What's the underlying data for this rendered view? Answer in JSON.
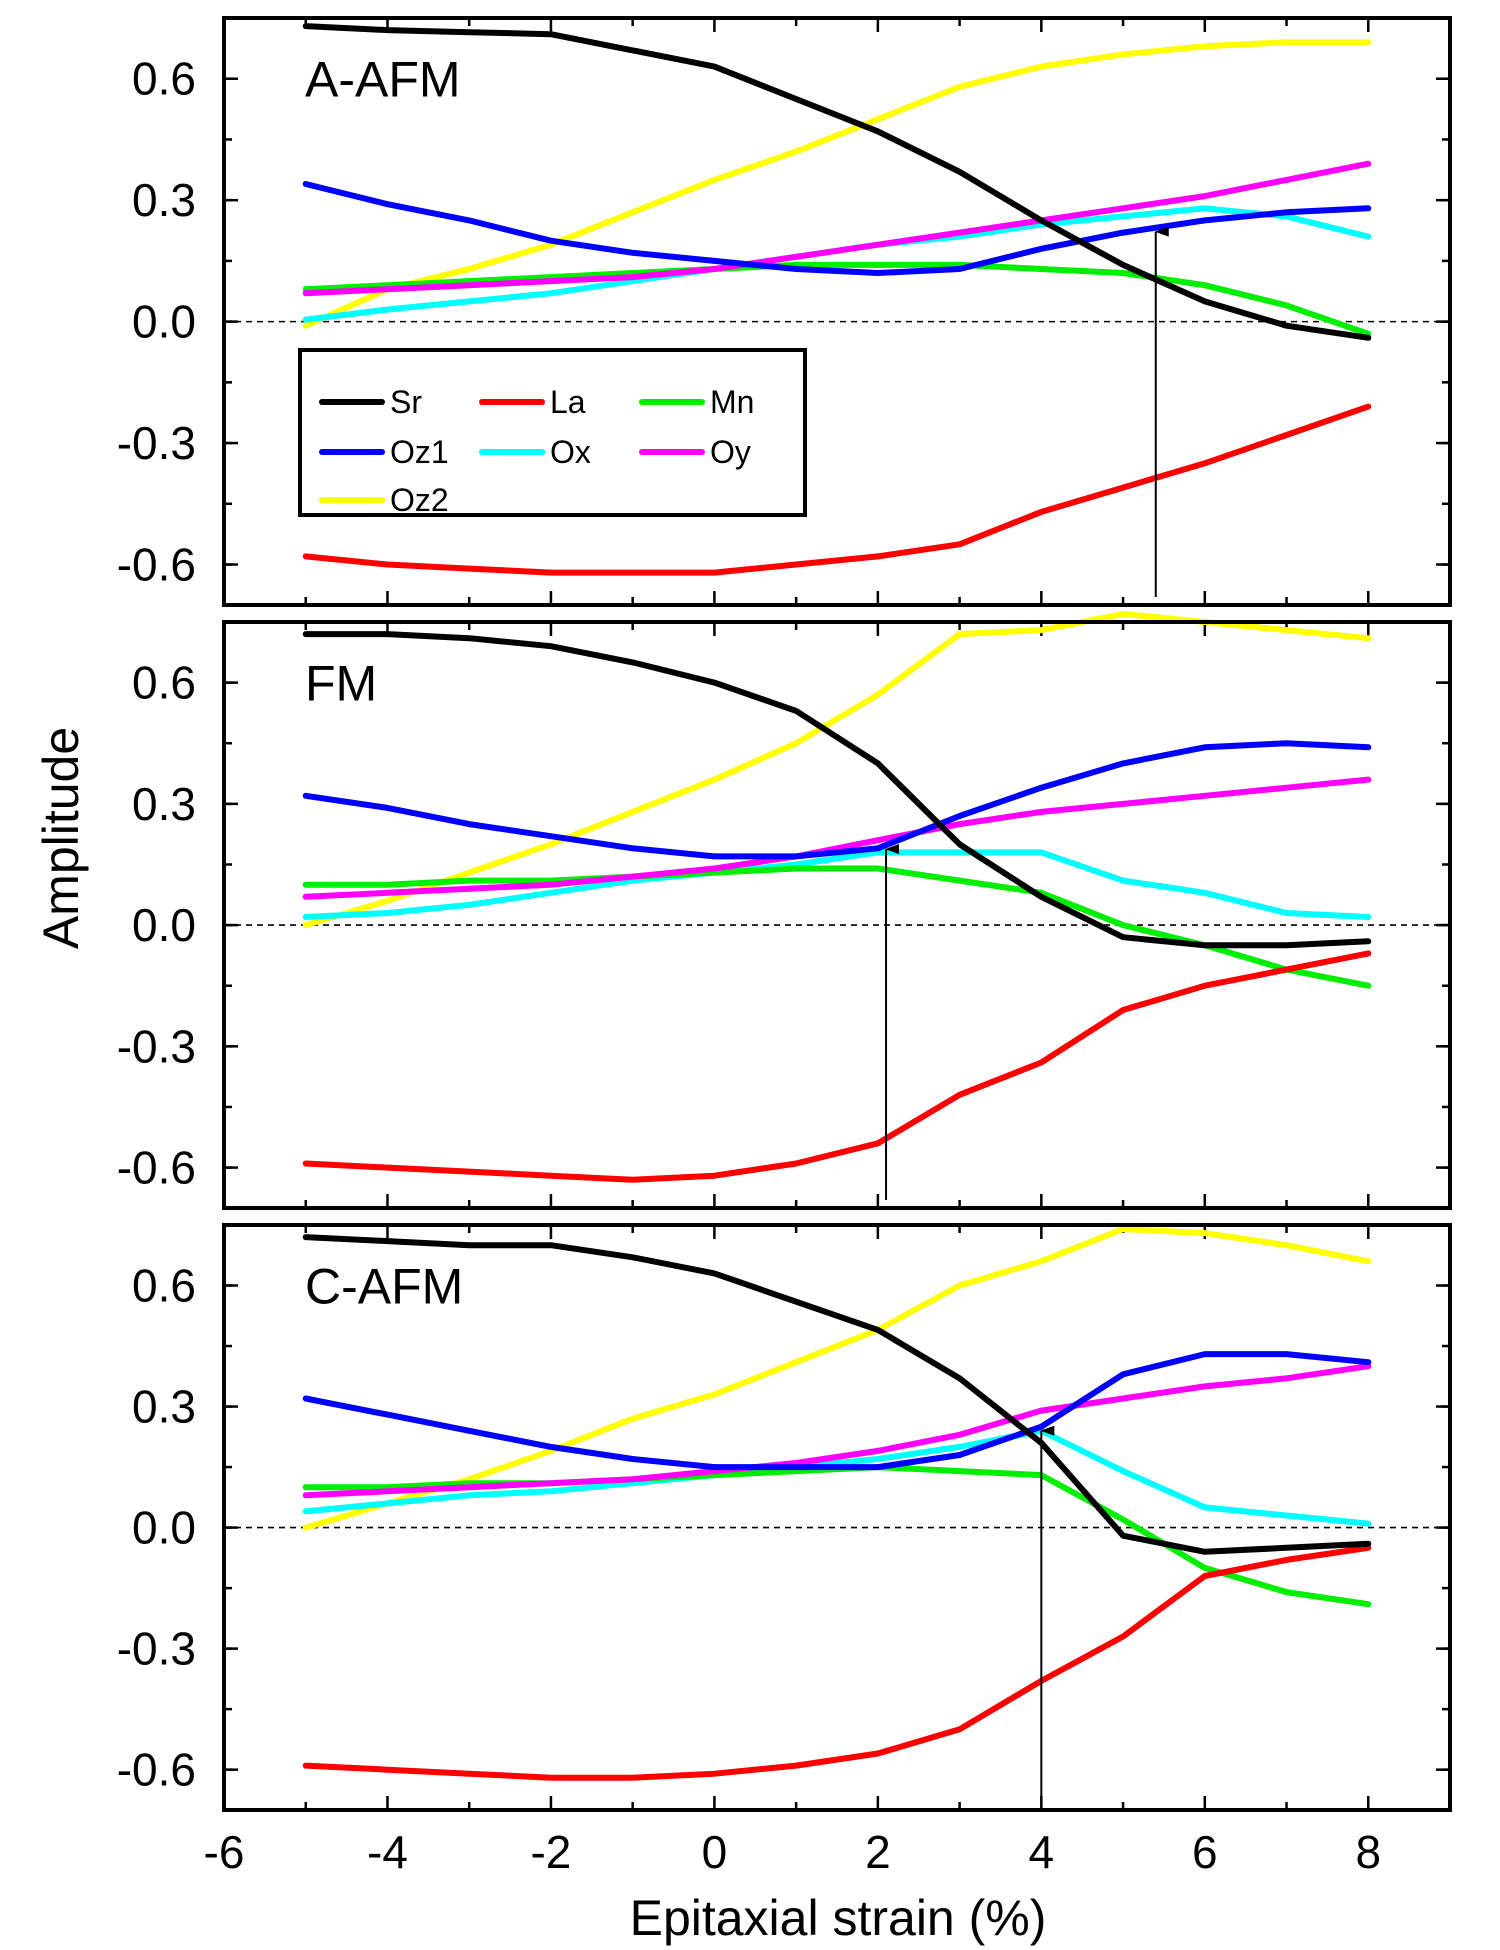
{
  "chart_data": {
    "type": "line",
    "x": [
      -5,
      -4,
      -3,
      -2,
      -1,
      0,
      1,
      2,
      3,
      4,
      5,
      6,
      7,
      8
    ],
    "xlabel": "Epitaxial strain (%)",
    "ylabel": "Amplitude",
    "xlim": [
      -6,
      9
    ],
    "ylim": [
      -0.7,
      0.75
    ],
    "xticks": [
      -6,
      -4,
      -2,
      0,
      2,
      4,
      6,
      8
    ],
    "xtick_labels": [
      "-6",
      "-4",
      "-2",
      "0",
      "2",
      "4",
      "6",
      "8"
    ],
    "yticks": [
      -0.6,
      -0.3,
      0.0,
      0.3,
      0.6
    ],
    "ytick_labels": [
      "-0.6",
      "-0.3",
      "0.0",
      "0.3",
      "0.6"
    ],
    "legend": {
      "placement": "lower-left of top panel",
      "entries": [
        {
          "name": "Sr",
          "color": "#000000"
        },
        {
          "name": "La",
          "color": "#ff0000"
        },
        {
          "name": "Mn",
          "color": "#00ee00"
        },
        {
          "name": "Oz1",
          "color": "#0000ff"
        },
        {
          "name": "Ox",
          "color": "#00ffff"
        },
        {
          "name": "Oy",
          "color": "#ff00ff"
        },
        {
          "name": "Oz2",
          "color": "#ffff00"
        }
      ]
    },
    "panels": [
      {
        "label": "A-AFM",
        "arrow_x": 5.4,
        "series": [
          {
            "name": "Oz2",
            "color": "#ffff00",
            "values": [
              -0.01,
              0.08,
              0.13,
              0.19,
              0.27,
              0.35,
              0.42,
              0.5,
              0.58,
              0.63,
              0.66,
              0.68,
              0.69,
              0.69
            ]
          },
          {
            "name": "Ox",
            "color": "#00ffff",
            "values": [
              0.005,
              0.03,
              0.05,
              0.07,
              0.1,
              0.13,
              0.16,
              0.19,
              0.21,
              0.24,
              0.26,
              0.28,
              0.26,
              0.21
            ]
          },
          {
            "name": "Mn",
            "color": "#00ee00",
            "values": [
              0.08,
              0.09,
              0.1,
              0.11,
              0.12,
              0.13,
              0.14,
              0.14,
              0.14,
              0.13,
              0.12,
              0.09,
              0.04,
              -0.03
            ]
          },
          {
            "name": "Oy",
            "color": "#ff00ff",
            "values": [
              0.07,
              0.08,
              0.09,
              0.1,
              0.11,
              0.13,
              0.16,
              0.19,
              0.22,
              0.25,
              0.28,
              0.31,
              0.35,
              0.39
            ]
          },
          {
            "name": "Oz1",
            "color": "#0000ff",
            "values": [
              0.34,
              0.29,
              0.25,
              0.2,
              0.17,
              0.15,
              0.13,
              0.12,
              0.13,
              0.18,
              0.22,
              0.25,
              0.27,
              0.28
            ]
          },
          {
            "name": "La",
            "color": "#ff0000",
            "values": [
              -0.58,
              -0.6,
              -0.61,
              -0.62,
              -0.62,
              -0.62,
              -0.6,
              -0.58,
              -0.55,
              -0.47,
              -0.41,
              -0.35,
              -0.28,
              -0.21
            ]
          },
          {
            "name": "Sr",
            "color": "#000000",
            "values": [
              0.73,
              0.72,
              0.715,
              0.71,
              0.67,
              0.63,
              0.55,
              0.47,
              0.37,
              0.25,
              0.14,
              0.05,
              -0.01,
              -0.04
            ]
          }
        ]
      },
      {
        "label": "FM",
        "arrow_x": 2.1,
        "series": [
          {
            "name": "Oz2",
            "color": "#ffff00",
            "values": [
              0.0,
              0.06,
              0.13,
              0.2,
              0.28,
              0.36,
              0.45,
              0.57,
              0.72,
              0.73,
              0.77,
              0.75,
              0.73,
              0.71
            ]
          },
          {
            "name": "Ox",
            "color": "#00ffff",
            "values": [
              0.02,
              0.03,
              0.05,
              0.08,
              0.11,
              0.13,
              0.15,
              0.18,
              0.18,
              0.18,
              0.11,
              0.08,
              0.03,
              0.02
            ]
          },
          {
            "name": "Mn",
            "color": "#00ee00",
            "values": [
              0.1,
              0.1,
              0.11,
              0.11,
              0.12,
              0.13,
              0.14,
              0.14,
              0.11,
              0.08,
              0.0,
              -0.05,
              -0.11,
              -0.15
            ]
          },
          {
            "name": "Oy",
            "color": "#ff00ff",
            "values": [
              0.07,
              0.08,
              0.09,
              0.1,
              0.12,
              0.14,
              0.17,
              0.21,
              0.25,
              0.28,
              0.3,
              0.32,
              0.34,
              0.36
            ]
          },
          {
            "name": "Oz1",
            "color": "#0000ff",
            "values": [
              0.32,
              0.29,
              0.25,
              0.22,
              0.19,
              0.17,
              0.17,
              0.19,
              0.27,
              0.34,
              0.4,
              0.44,
              0.45,
              0.44
            ]
          },
          {
            "name": "La",
            "color": "#ff0000",
            "values": [
              -0.59,
              -0.6,
              -0.61,
              -0.62,
              -0.63,
              -0.62,
              -0.59,
              -0.54,
              -0.42,
              -0.34,
              -0.21,
              -0.15,
              -0.11,
              -0.07
            ]
          },
          {
            "name": "Sr",
            "color": "#000000",
            "values": [
              0.72,
              0.72,
              0.71,
              0.69,
              0.65,
              0.6,
              0.53,
              0.4,
              0.2,
              0.07,
              -0.03,
              -0.05,
              -0.05,
              -0.04
            ]
          }
        ]
      },
      {
        "label": "C-AFM",
        "arrow_x": 4.0,
        "series": [
          {
            "name": "Oz2",
            "color": "#ffff00",
            "values": [
              0.0,
              0.06,
              0.12,
              0.19,
              0.27,
              0.33,
              0.41,
              0.49,
              0.6,
              0.66,
              0.74,
              0.73,
              0.7,
              0.66
            ]
          },
          {
            "name": "Ox",
            "color": "#00ffff",
            "values": [
              0.04,
              0.06,
              0.08,
              0.09,
              0.11,
              0.13,
              0.15,
              0.17,
              0.2,
              0.24,
              0.14,
              0.05,
              0.03,
              0.01
            ]
          },
          {
            "name": "Mn",
            "color": "#00ee00",
            "values": [
              0.1,
              0.1,
              0.11,
              0.11,
              0.12,
              0.13,
              0.14,
              0.15,
              0.14,
              0.13,
              0.02,
              -0.1,
              -0.16,
              -0.19
            ]
          },
          {
            "name": "Oy",
            "color": "#ff00ff",
            "values": [
              0.08,
              0.09,
              0.1,
              0.11,
              0.12,
              0.14,
              0.16,
              0.19,
              0.23,
              0.29,
              0.32,
              0.35,
              0.37,
              0.4
            ]
          },
          {
            "name": "Oz1",
            "color": "#0000ff",
            "values": [
              0.32,
              0.28,
              0.24,
              0.2,
              0.17,
              0.15,
              0.15,
              0.15,
              0.18,
              0.25,
              0.38,
              0.43,
              0.43,
              0.41
            ]
          },
          {
            "name": "La",
            "color": "#ff0000",
            "values": [
              -0.59,
              -0.6,
              -0.61,
              -0.62,
              -0.62,
              -0.61,
              -0.59,
              -0.56,
              -0.5,
              -0.38,
              -0.27,
              -0.12,
              -0.08,
              -0.05
            ]
          },
          {
            "name": "Sr",
            "color": "#000000",
            "values": [
              0.72,
              0.71,
              0.7,
              0.7,
              0.67,
              0.63,
              0.56,
              0.49,
              0.37,
              0.21,
              -0.02,
              -0.06,
              -0.05,
              -0.04
            ]
          }
        ]
      }
    ]
  }
}
